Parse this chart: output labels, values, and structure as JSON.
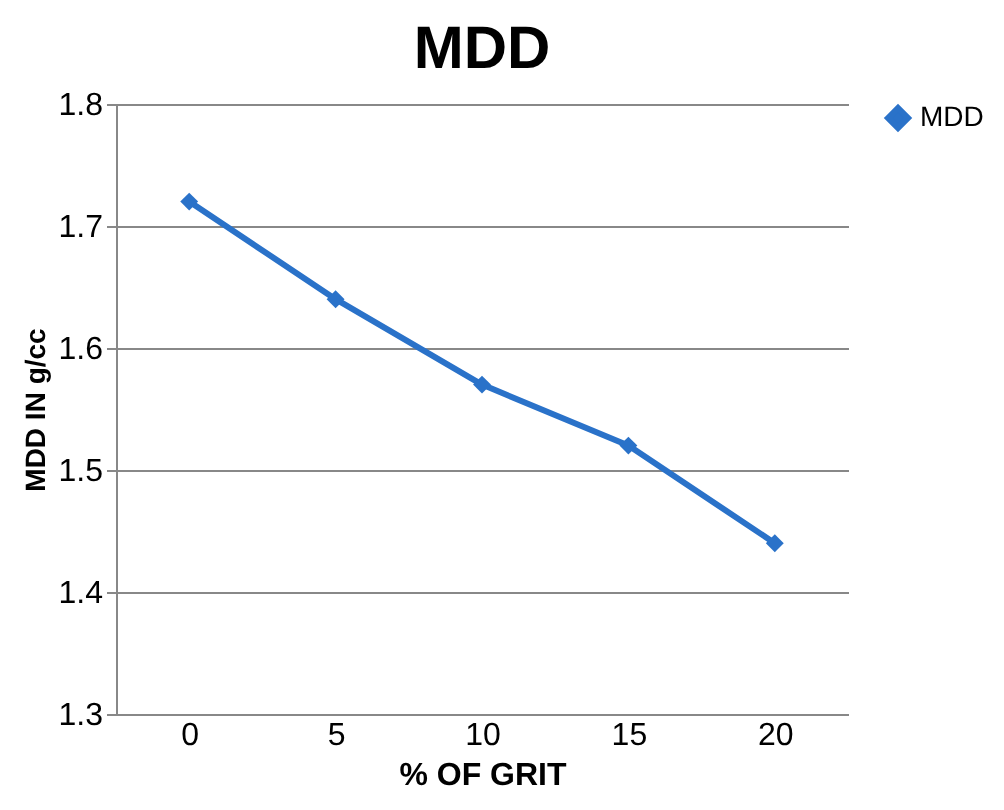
{
  "chart_data": {
    "type": "line",
    "title": "MDD",
    "xlabel": "% OF GRIT",
    "ylabel": "MDD IN g/cc",
    "categories": [
      "0",
      "5",
      "10",
      "15",
      "20"
    ],
    "series": [
      {
        "name": "MDD",
        "color": "#2a72c9",
        "values": [
          1.72,
          1.64,
          1.57,
          1.52,
          1.44
        ]
      }
    ],
    "ylim": [
      1.3,
      1.8
    ],
    "yticks": [
      1.3,
      1.4,
      1.5,
      1.6,
      1.7,
      1.8
    ],
    "grid": "y",
    "legend": "right",
    "marker": "diamond",
    "line_style": "solid"
  }
}
